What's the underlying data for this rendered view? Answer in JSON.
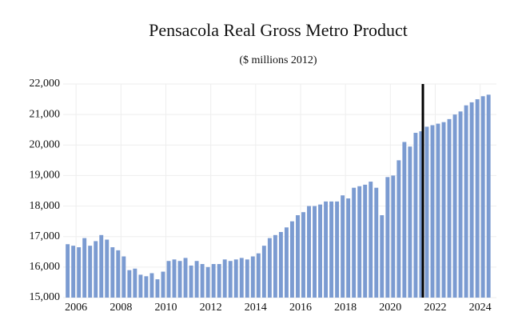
{
  "chart_data": {
    "type": "bar",
    "title": "Pensacola Real Gross Metro Product",
    "subtitle": "($ millions 2012)",
    "x": [
      2006,
      2006.25,
      2006.5,
      2006.75,
      2007,
      2007.25,
      2007.5,
      2007.75,
      2008,
      2008.25,
      2008.5,
      2008.75,
      2009,
      2009.25,
      2009.5,
      2009.75,
      2010,
      2010.25,
      2010.5,
      2010.75,
      2011,
      2011.25,
      2011.5,
      2011.75,
      2012,
      2012.25,
      2012.5,
      2012.75,
      2013,
      2013.25,
      2013.5,
      2013.75,
      2014,
      2014.25,
      2014.5,
      2014.75,
      2015,
      2015.25,
      2015.5,
      2015.75,
      2016,
      2016.25,
      2016.5,
      2016.75,
      2017,
      2017.25,
      2017.5,
      2017.75,
      2018,
      2018.25,
      2018.5,
      2018.75,
      2019,
      2019.25,
      2019.5,
      2019.75,
      2020,
      2020.25,
      2020.5,
      2020.75,
      2021,
      2021.25,
      2021.5,
      2021.75,
      2022,
      2022.25,
      2022.5,
      2022.75,
      2023,
      2023.25,
      2023.5,
      2023.75,
      2024,
      2024.25,
      2024.5,
      2024.75
    ],
    "values": [
      16750,
      16700,
      16650,
      16950,
      16700,
      16850,
      17050,
      16900,
      16650,
      16550,
      16350,
      15900,
      15950,
      15750,
      15700,
      15800,
      15600,
      15850,
      16200,
      16250,
      16200,
      16300,
      16050,
      16200,
      16100,
      16000,
      16100,
      16100,
      16250,
      16200,
      16250,
      16300,
      16250,
      16350,
      16450,
      16700,
      16950,
      17050,
      17150,
      17300,
      17500,
      17700,
      17800,
      18000,
      18000,
      18050,
      18150,
      18150,
      18150,
      18350,
      18250,
      18600,
      18650,
      18700,
      18800,
      18600,
      17700,
      18950,
      19000,
      19500,
      20100,
      19950,
      20400,
      20450,
      20600,
      20650,
      20700,
      20750,
      20850,
      21000,
      21100,
      21300,
      21400,
      21500,
      21600,
      21650
    ],
    "color": "#7b9bd1",
    "xlim": [
      2005.8,
      2025.1
    ],
    "xticks": [
      {
        "value": 2006.375,
        "label": "2006"
      },
      {
        "value": 2008.375,
        "label": "2008"
      },
      {
        "value": 2010.375,
        "label": "2010"
      },
      {
        "value": 2012.375,
        "label": "2012"
      },
      {
        "value": 2014.375,
        "label": "2014"
      },
      {
        "value": 2016.375,
        "label": "2016"
      },
      {
        "value": 2018.375,
        "label": "2018"
      },
      {
        "value": 2020.375,
        "label": "2020"
      },
      {
        "value": 2022.375,
        "label": "2022"
      },
      {
        "value": 2024.375,
        "label": "2024"
      }
    ],
    "ylim": [
      15000,
      22000
    ],
    "yticks": [
      {
        "value": 15000,
        "label": "15,000"
      },
      {
        "value": 16000,
        "label": "16,000"
      },
      {
        "value": 17000,
        "label": "17,000"
      },
      {
        "value": 18000,
        "label": "18,000"
      },
      {
        "value": 19000,
        "label": "19,000"
      },
      {
        "value": 20000,
        "label": "20,000"
      },
      {
        "value": 21000,
        "label": "21,000"
      },
      {
        "value": 22000,
        "label": "22,000"
      }
    ],
    "grid": true
  }
}
